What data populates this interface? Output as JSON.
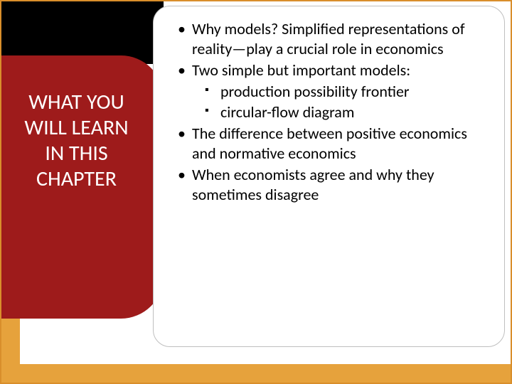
{
  "colors": {
    "border": "#d98e2b",
    "accent_strip": "#e6a23c",
    "red_panel": "#9e1b1b",
    "content_border": "#bfbfbf"
  },
  "sidebar": {
    "title_line1": "WHAT YOU",
    "title_line2": "WILL LEARN",
    "title_line3": "IN THIS",
    "title_line4": "CHAPTER"
  },
  "bullets": {
    "b1": "Why models? Simplified representations of reality—play a crucial role in economics",
    "b2": "Two simple but important models:",
    "b2_sub1": "production possibility frontier",
    "b2_sub2": "circular-flow diagram",
    "b3": "The difference between positive economics and normative economics",
    "b4": "When economists agree and why they sometimes disagree"
  }
}
